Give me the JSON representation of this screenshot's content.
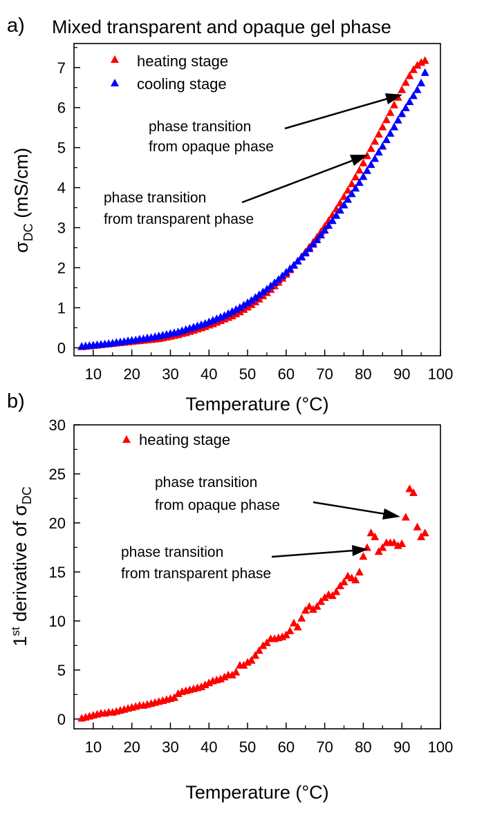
{
  "chart_data": [
    {
      "type": "scatter",
      "panel_label": "a)",
      "title": "Mixed transparent and opaque gel phase",
      "xlabel": "Temperature (°C)",
      "ylabel": {
        "sigma": "σ",
        "sub": "DC",
        "rest": " (mS/cm)"
      },
      "xlim": [
        5,
        100
      ],
      "ylim": [
        -0.2,
        7.6
      ],
      "xticks": [
        10,
        20,
        30,
        40,
        50,
        60,
        70,
        80,
        90,
        100
      ],
      "yticks": [
        0,
        1,
        2,
        3,
        4,
        5,
        6,
        7
      ],
      "legend_position": "top-left",
      "series": [
        {
          "name": "heating stage",
          "color": "#ff0000",
          "x": [
            7,
            8,
            9,
            10,
            11,
            12,
            13,
            14,
            15,
            16,
            17,
            18,
            19,
            20,
            21,
            22,
            23,
            24,
            25,
            26,
            27,
            28,
            29,
            30,
            31,
            32,
            33,
            34,
            35,
            36,
            37,
            38,
            39,
            40,
            41,
            42,
            43,
            44,
            45,
            46,
            47,
            48,
            49,
            50,
            51,
            52,
            53,
            54,
            55,
            56,
            57,
            58,
            59,
            60,
            61,
            62,
            63,
            64,
            65,
            66,
            67,
            68,
            69,
            70,
            71,
            72,
            73,
            74,
            75,
            76,
            77,
            78,
            79,
            80,
            81,
            82,
            83,
            84,
            85,
            86,
            87,
            88,
            89,
            90,
            91,
            92,
            93,
            94,
            95,
            96
          ],
          "y": [
            0.03,
            0.04,
            0.05,
            0.06,
            0.07,
            0.08,
            0.09,
            0.1,
            0.11,
            0.12,
            0.13,
            0.14,
            0.15,
            0.16,
            0.17,
            0.18,
            0.19,
            0.2,
            0.21,
            0.22,
            0.23,
            0.25,
            0.27,
            0.29,
            0.31,
            0.33,
            0.36,
            0.38,
            0.41,
            0.44,
            0.47,
            0.5,
            0.53,
            0.57,
            0.6,
            0.64,
            0.68,
            0.72,
            0.76,
            0.8,
            0.85,
            0.9,
            0.96,
            1.02,
            1.08,
            1.15,
            1.22,
            1.3,
            1.38,
            1.46,
            1.55,
            1.64,
            1.74,
            1.84,
            1.95,
            2.06,
            2.17,
            2.28,
            2.4,
            2.52,
            2.64,
            2.77,
            2.9,
            3.04,
            3.18,
            3.32,
            3.47,
            3.62,
            3.78,
            3.94,
            4.1,
            4.27,
            4.44,
            4.62,
            4.8,
            4.98,
            5.16,
            5.34,
            5.52,
            5.7,
            5.88,
            6.07,
            6.26,
            6.45,
            6.63,
            6.8,
            6.95,
            7.06,
            7.13,
            7.18
          ]
        },
        {
          "name": "cooling stage",
          "color": "#0000ff",
          "x": [
            7,
            8,
            9,
            10,
            11,
            12,
            13,
            14,
            15,
            16,
            17,
            18,
            19,
            20,
            21,
            22,
            23,
            24,
            25,
            26,
            27,
            28,
            29,
            30,
            31,
            32,
            33,
            34,
            35,
            36,
            37,
            38,
            39,
            40,
            41,
            42,
            43,
            44,
            45,
            46,
            47,
            48,
            49,
            50,
            51,
            52,
            53,
            54,
            55,
            56,
            57,
            58,
            59,
            60,
            61,
            62,
            63,
            64,
            65,
            66,
            67,
            68,
            69,
            70,
            71,
            72,
            73,
            74,
            75,
            76,
            77,
            78,
            79,
            80,
            81,
            82,
            83,
            84,
            85,
            86,
            87,
            88,
            89,
            90,
            91,
            92,
            93,
            94,
            95,
            96
          ],
          "y": [
            0.04,
            0.05,
            0.06,
            0.07,
            0.08,
            0.09,
            0.1,
            0.11,
            0.12,
            0.14,
            0.15,
            0.16,
            0.18,
            0.19,
            0.2,
            0.22,
            0.23,
            0.25,
            0.26,
            0.28,
            0.3,
            0.32,
            0.34,
            0.36,
            0.38,
            0.4,
            0.43,
            0.46,
            0.49,
            0.52,
            0.55,
            0.58,
            0.61,
            0.65,
            0.69,
            0.73,
            0.77,
            0.81,
            0.86,
            0.91,
            0.96,
            1.01,
            1.07,
            1.13,
            1.19,
            1.26,
            1.33,
            1.4,
            1.47,
            1.55,
            1.63,
            1.71,
            1.8,
            1.89,
            1.98,
            2.07,
            2.17,
            2.27,
            2.37,
            2.48,
            2.59,
            2.7,
            2.82,
            2.94,
            3.06,
            3.18,
            3.31,
            3.44,
            3.57,
            3.71,
            3.85,
            3.99,
            4.13,
            4.28,
            4.43,
            4.58,
            4.73,
            4.89,
            5.04,
            5.2,
            5.36,
            5.52,
            5.69,
            5.85,
            6.0,
            6.15,
            6.3,
            6.45,
            6.62,
            6.88
          ]
        }
      ],
      "annotations": [
        {
          "lines": [
            "phase transition",
            "from opaque phase"
          ]
        },
        {
          "lines": [
            "phase transition",
            "from transparent phase"
          ]
        }
      ]
    },
    {
      "type": "scatter",
      "panel_label": "b)",
      "title": "",
      "xlabel": "Temperature (°C)",
      "ylabel": {
        "prefix": "1",
        "sup": "st",
        "rest": " derivative of σ",
        "sub": "DC"
      },
      "xlim": [
        5,
        100
      ],
      "ylim": [
        -1,
        30
      ],
      "xticks": [
        10,
        20,
        30,
        40,
        50,
        60,
        70,
        80,
        90,
        100
      ],
      "yticks": [
        0,
        5,
        10,
        15,
        20,
        25,
        30
      ],
      "legend_position": "top-left",
      "series": [
        {
          "name": "heating stage",
          "color": "#ff0000",
          "x": [
            7,
            8,
            9,
            10,
            11,
            12,
            13,
            14,
            15,
            16,
            17,
            18,
            19,
            20,
            21,
            22,
            23,
            24,
            25,
            26,
            27,
            28,
            29,
            30,
            31,
            32,
            33,
            34,
            35,
            36,
            37,
            38,
            39,
            40,
            41,
            42,
            43,
            44,
            45,
            46,
            47,
            48,
            49,
            50,
            51,
            52,
            53,
            54,
            55,
            56,
            57,
            58,
            59,
            60,
            61,
            62,
            63,
            64,
            65,
            66,
            67,
            68,
            69,
            70,
            71,
            72,
            73,
            74,
            75,
            76,
            77,
            78,
            79,
            80,
            81,
            82,
            83,
            84,
            85,
            86,
            87,
            88,
            89,
            90,
            91,
            92,
            93,
            94,
            95,
            96
          ],
          "y": [
            0.1,
            0.2,
            0.3,
            0.4,
            0.5,
            0.6,
            0.6,
            0.7,
            0.7,
            0.8,
            0.9,
            1.0,
            1.1,
            1.2,
            1.3,
            1.4,
            1.4,
            1.5,
            1.6,
            1.7,
            1.8,
            1.9,
            2.0,
            2.1,
            2.2,
            2.6,
            2.8,
            2.9,
            3.0,
            3.1,
            3.2,
            3.3,
            3.5,
            3.7,
            3.9,
            4.0,
            4.1,
            4.3,
            4.5,
            4.5,
            4.8,
            5.5,
            5.5,
            5.8,
            6.0,
            6.5,
            7.0,
            7.5,
            7.8,
            8.2,
            8.2,
            8.3,
            8.4,
            8.6,
            9.0,
            9.8,
            9.4,
            10.3,
            11.1,
            11.5,
            11.2,
            11.5,
            12.0,
            12.4,
            12.7,
            12.6,
            13.0,
            13.6,
            14.0,
            14.6,
            14.4,
            14.2,
            15.0,
            16.6,
            17.5,
            19.0,
            18.6,
            17.1,
            17.5,
            18.0,
            18.0,
            18.0,
            17.7,
            17.9,
            20.6,
            23.5,
            23.1,
            19.6,
            18.6,
            19.0
          ]
        }
      ],
      "annotations": [
        {
          "lines": [
            "phase transition",
            "from opaque phase"
          ]
        },
        {
          "lines": [
            "phase transition",
            "from transparent phase"
          ]
        }
      ]
    }
  ]
}
